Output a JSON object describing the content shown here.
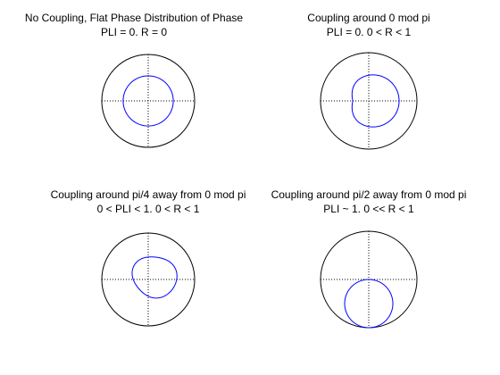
{
  "figure": {
    "background": "#ffffff",
    "axis_color": "#000000",
    "grid_color": "#000000",
    "curve_color": "#0000ff"
  },
  "chart_data": [
    {
      "type": "polar",
      "title": "No Coupling, Flat Phase Distribution of Phase",
      "subtitle": "PLI = 0. R = 0",
      "rlim": [
        0,
        1
      ],
      "grid": true,
      "curve": {
        "shape": "circle",
        "center": [
          0.0,
          0.0
        ],
        "radius": 0.54,
        "color": "#0000ff"
      }
    },
    {
      "type": "polar",
      "title": "Coupling around 0 mod pi",
      "subtitle": "PLI = 0. 0 < R < 1",
      "rlim": [
        0,
        1
      ],
      "grid": true,
      "curve": {
        "shape": "figure-eight-lobe",
        "center": [
          0.09,
          0.0
        ],
        "radius": 0.54,
        "flatten_side": "left",
        "color": "#0000ff"
      }
    },
    {
      "type": "polar",
      "title": "Coupling around pi/4 away from 0 mod pi",
      "subtitle": "0 < PLI < 1. 0 < R < 1",
      "rlim": [
        0,
        1
      ],
      "grid": true,
      "curve": {
        "shape": "offset-lobe",
        "center": [
          0.14,
          0.06
        ],
        "radius": 0.46,
        "color": "#0000ff"
      }
    },
    {
      "type": "polar",
      "title": "Coupling around pi/2 away from 0 mod pi",
      "subtitle": "PLI ~ 1. 0 << R < 1",
      "rlim": [
        0,
        1
      ],
      "grid": true,
      "curve": {
        "shape": "circle",
        "center": [
          0.0,
          -0.5
        ],
        "radius": 0.5,
        "color": "#0000ff"
      }
    }
  ]
}
